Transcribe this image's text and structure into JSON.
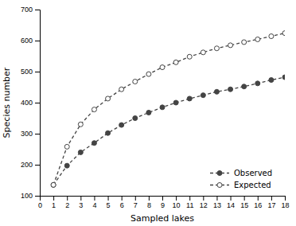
{
  "chart_data": {
    "type": "line",
    "xlabel": "Sampled lakes",
    "ylabel": "Species number",
    "x": [
      1,
      2,
      3,
      4,
      5,
      6,
      7,
      8,
      9,
      10,
      11,
      12,
      13,
      14,
      15,
      16,
      17,
      18
    ],
    "series": [
      {
        "name": "Observed",
        "color": "#444444",
        "marker": "circle",
        "line_style": "dashed",
        "values": [
          135,
          197,
          240,
          270,
          302,
          328,
          350,
          368,
          385,
          400,
          413,
          424,
          435,
          443,
          452,
          462,
          473,
          482
        ]
      },
      {
        "name": "Expected",
        "color": "#444444",
        "marker": "circle-open",
        "line_style": "dashed",
        "values": [
          135,
          258,
          330,
          378,
          413,
          443,
          468,
          492,
          514,
          530,
          548,
          562,
          575,
          585,
          595,
          604,
          614,
          624
        ]
      }
    ],
    "xlim": [
      0,
      18
    ],
    "ylim": [
      100,
      700
    ],
    "xticks": [
      0,
      1,
      2,
      3,
      4,
      5,
      6,
      7,
      8,
      9,
      10,
      11,
      12,
      13,
      14,
      15,
      16,
      17,
      18
    ],
    "yticks": [
      100,
      200,
      300,
      400,
      500,
      600,
      700
    ],
    "legend": "lower right",
    "grid": false
  }
}
